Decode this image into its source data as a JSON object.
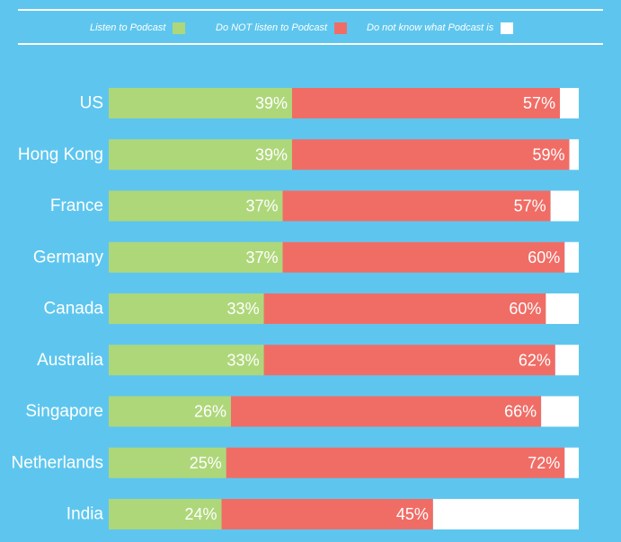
{
  "chart_data": {
    "type": "bar",
    "orientation": "horizontal",
    "stacked": true,
    "categories": [
      "US",
      "Hong Kong",
      "France",
      "Germany",
      "Canada",
      "Australia",
      "Singapore",
      "Netherlands",
      "India"
    ],
    "series": [
      {
        "name": "Listen to Podcast",
        "color": "#aed77a",
        "values": [
          39,
          39,
          37,
          37,
          33,
          33,
          26,
          25,
          24
        ]
      },
      {
        "name": "Do NOT listen to Podcast",
        "color": "#f06d66",
        "values": [
          57,
          59,
          57,
          60,
          60,
          62,
          66,
          72,
          45
        ]
      },
      {
        "name": "Do not know what Podcast is",
        "color": "#ffffff",
        "values": [
          4,
          2,
          6,
          3,
          7,
          5,
          8,
          3,
          31
        ]
      }
    ],
    "data_labels": [
      [
        "39%",
        "39%",
        "37%",
        "37%",
        "33%",
        "33%",
        "26%",
        "25%",
        "24%"
      ],
      [
        "57%",
        "59%",
        "57%",
        "60%",
        "60%",
        "62%",
        "66%",
        "72%",
        "45%"
      ]
    ],
    "legend_position": "top",
    "grid": false,
    "colors": {
      "background": "#5ec6ee",
      "text": "#ffffff"
    }
  }
}
